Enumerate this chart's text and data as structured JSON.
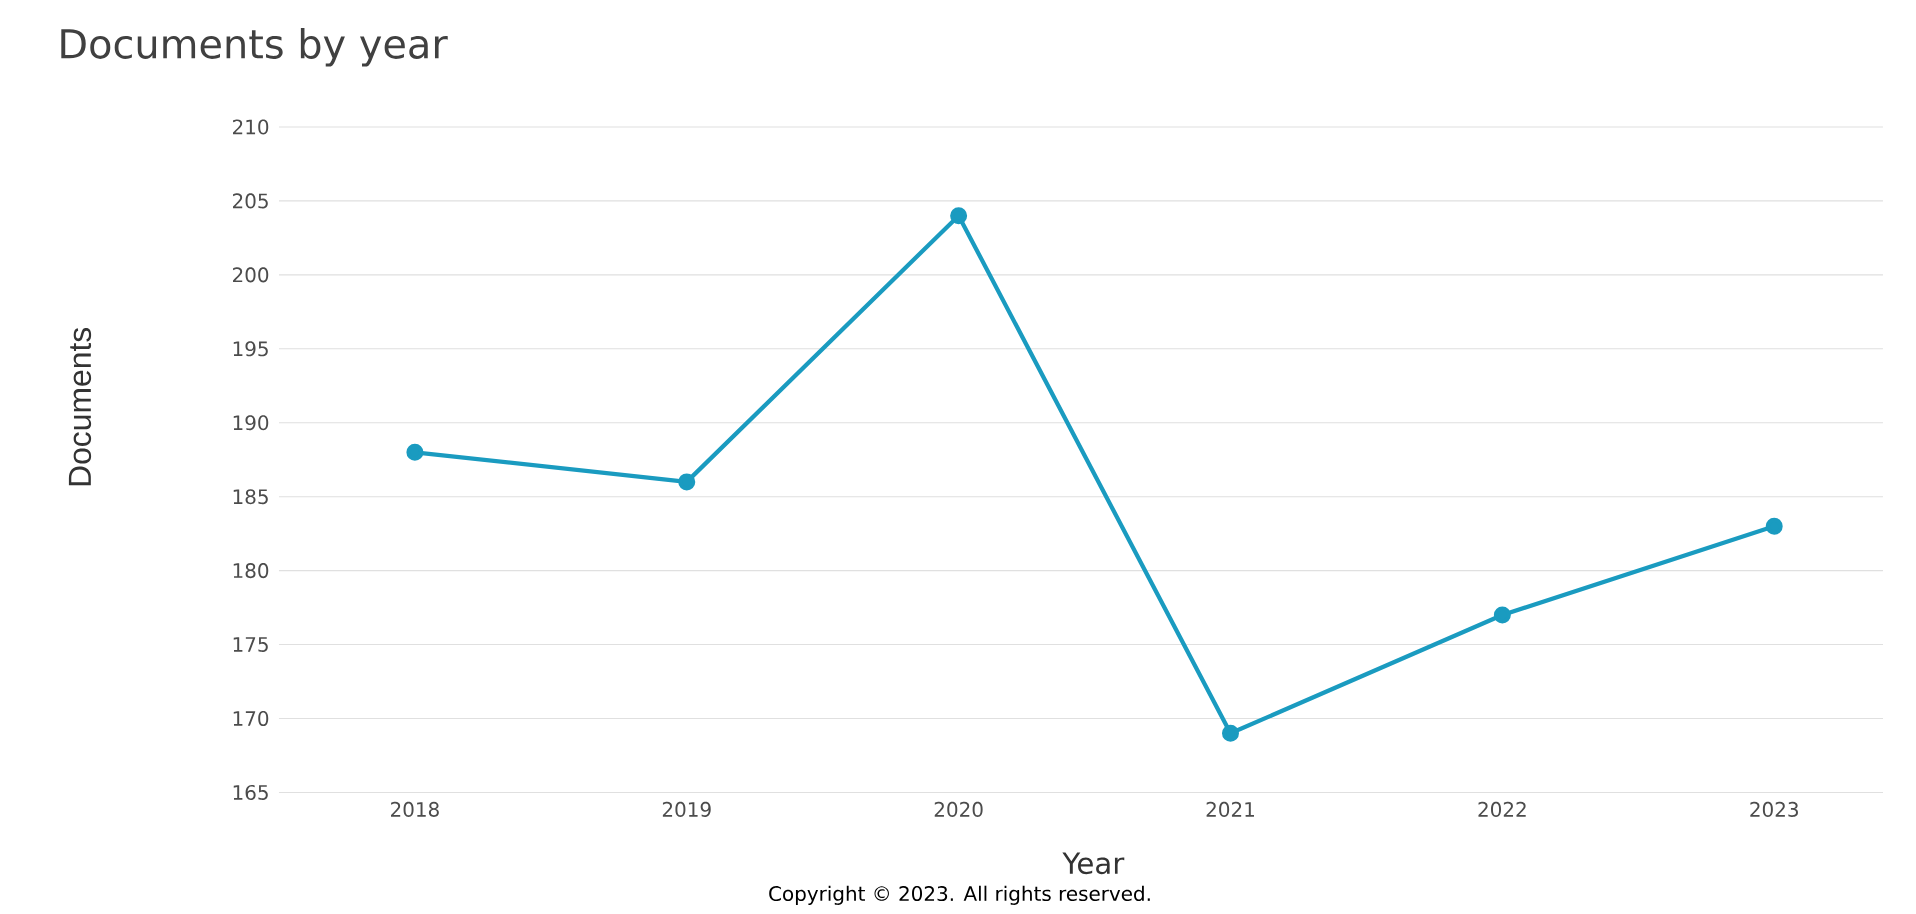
{
  "chart_data": {
    "type": "line",
    "title": "Documents by year",
    "xlabel": "Year",
    "ylabel": "Documents",
    "categories": [
      "2018",
      "2019",
      "2020",
      "2021",
      "2022",
      "2023"
    ],
    "series": [
      {
        "color": "#1a9bc0",
        "values": [
          188,
          186,
          204,
          169,
          177,
          183
        ]
      }
    ],
    "ylim": [
      165,
      210
    ],
    "yticks": [
      165,
      170,
      175,
      180,
      185,
      190,
      195,
      200,
      205,
      210
    ],
    "grid": "y",
    "marker": "circle",
    "line_style": "solid",
    "annotations": [
      "Copyright © 2023. All rights reserved."
    ]
  }
}
